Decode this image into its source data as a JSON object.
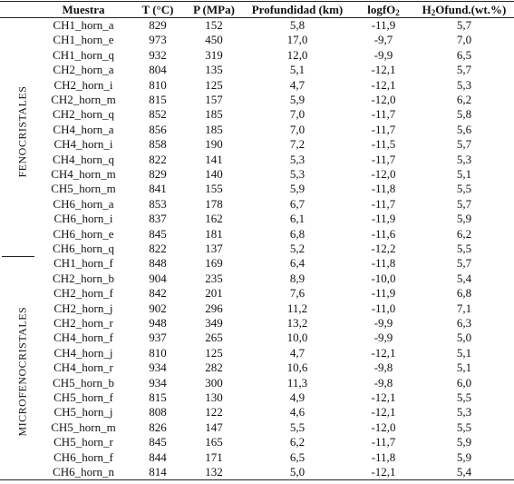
{
  "headers": {
    "muestra": "Muestra",
    "t": "T (°C)",
    "p": "P (MPa)",
    "prof": "Profundidad (km)",
    "logfo_pre": "logfO",
    "logfo_sub": "2",
    "h2o_sub": "2",
    "h2o_post": "Ofund.(wt.%)"
  },
  "groups": {
    "feno": "FENOCRISTALES",
    "micro": "MICROFENOCRISTALES"
  },
  "rows": [
    [
      "CH1_horn_a",
      "829",
      "152",
      "5,8",
      "-11,9",
      "5,7"
    ],
    [
      "CH1_horn_e",
      "973",
      "450",
      "17,0",
      "-9,7",
      "7,0"
    ],
    [
      "CH1_horn_q",
      "932",
      "319",
      "12,0",
      "-9,9",
      "6,5"
    ],
    [
      "CH2_horn_a",
      "804",
      "135",
      "5,1",
      "-12,1",
      "5,7"
    ],
    [
      "CH2_horn_i",
      "810",
      "125",
      "4,7",
      "-12,1",
      "5,3"
    ],
    [
      "CH2_horn_m",
      "815",
      "157",
      "5,9",
      "-12,0",
      "6,2"
    ],
    [
      "CH2_horn_q",
      "852",
      "185",
      "7,0",
      "-11,7",
      "5,8"
    ],
    [
      "CH4_horn_a",
      "856",
      "185",
      "7,0",
      "-11,7",
      "5,6"
    ],
    [
      "CH4_horn_i",
      "858",
      "190",
      "7,2",
      "-11,5",
      "5,7"
    ],
    [
      "CH4_horn_q",
      "822",
      "141",
      "5,3",
      "-11,7",
      "5,3"
    ],
    [
      "CH4_horn_m",
      "829",
      "140",
      "5,3",
      "-12,0",
      "5,1"
    ],
    [
      "CH5_horn_m",
      "841",
      "155",
      "5,9",
      "-11,8",
      "5,5"
    ],
    [
      "CH6_horn_a",
      "853",
      "178",
      "6,7",
      "-11,7",
      "5,7"
    ],
    [
      "CH6_horn_i",
      "837",
      "162",
      "6,1",
      "-11,9",
      "5,9"
    ],
    [
      "CH6_horn_e",
      "845",
      "181",
      "6,8",
      "-11,6",
      "6,2"
    ],
    [
      "CH6_horn_q",
      "822",
      "137",
      "5,2",
      "-12,2",
      "5,5"
    ],
    [
      "CH1_horn_f",
      "848",
      "169",
      "6,4",
      "-11,8",
      "5,7"
    ],
    [
      "CH2_horn_b",
      "904",
      "235",
      "8,9",
      "-10,0",
      "5,4"
    ],
    [
      "CH2_horn_f",
      "842",
      "201",
      "7,6",
      "-11,9",
      "6,8"
    ],
    [
      "CH2_horn_j",
      "902",
      "296",
      "11,2",
      "-11,0",
      "7,1"
    ],
    [
      "CH2_horn_r",
      "948",
      "349",
      "13,2",
      "-9,9",
      "6,3"
    ],
    [
      "CH4_horn_f",
      "937",
      "265",
      "10,0",
      "-9,9",
      "5,0"
    ],
    [
      "CH4_horn_j",
      "810",
      "125",
      "4,7",
      "-12,1",
      "5,1"
    ],
    [
      "CH4_horn_r",
      "934",
      "282",
      "10,6",
      "-9,8",
      "5,1"
    ],
    [
      "CH5_horn_b",
      "934",
      "300",
      "11,3",
      "-9,8",
      "6,0"
    ],
    [
      "CH5_horn_f",
      "815",
      "130",
      "4,9",
      "-12,1",
      "5,5"
    ],
    [
      "CH5_horn_j",
      "808",
      "122",
      "4,6",
      "-12,1",
      "5,3"
    ],
    [
      "CH5_horn_m",
      "826",
      "147",
      "5,5",
      "-12,0",
      "5,5"
    ],
    [
      "CH5_horn_r",
      "845",
      "165",
      "6,2",
      "-11,7",
      "5,9"
    ],
    [
      "CH6_horn_f",
      "844",
      "171",
      "6,5",
      "-11,8",
      "5,9"
    ],
    [
      "CH6_horn_n",
      "814",
      "132",
      "5,0",
      "-12,1",
      "5,4"
    ]
  ]
}
